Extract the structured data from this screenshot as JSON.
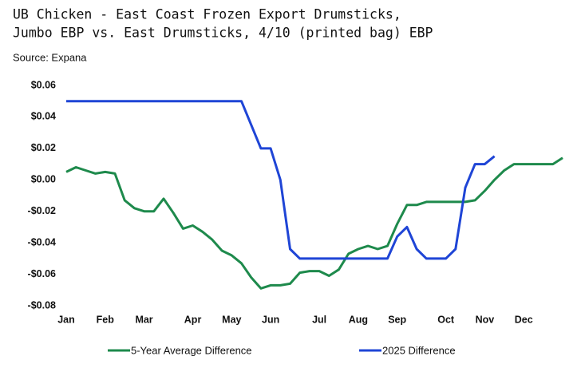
{
  "chart_data": {
    "type": "line",
    "title": [
      "UB Chicken - East Coast Frozen Export Drumsticks,",
      "Jumbo EBP vs. East Drumsticks, 4/10 (printed bag) EBP"
    ],
    "subtitle": "Source: Expana",
    "categories": [
      "Jan",
      null,
      null,
      null,
      "Feb",
      null,
      null,
      null,
      "Mar",
      null,
      null,
      null,
      null,
      "Apr",
      null,
      null,
      null,
      "May",
      null,
      null,
      null,
      "Jun",
      null,
      null,
      null,
      null,
      "Jul",
      null,
      null,
      null,
      "Aug",
      null,
      null,
      null,
      "Sep",
      null,
      null,
      null,
      null,
      "Oct",
      null,
      null,
      null,
      "Nov",
      null,
      null,
      null,
      "Dec",
      null,
      null,
      null,
      null
    ],
    "series": [
      {
        "name": "5-Year Average Difference",
        "color": "#1e8a4c",
        "values": [
          0.005,
          0.008,
          0.006,
          0.004,
          0.005,
          0.004,
          -0.013,
          -0.018,
          -0.02,
          -0.02,
          -0.012,
          -0.021,
          -0.031,
          -0.029,
          -0.033,
          -0.038,
          -0.045,
          -0.048,
          -0.053,
          -0.062,
          -0.069,
          -0.067,
          -0.067,
          -0.066,
          -0.059,
          -0.058,
          -0.058,
          -0.061,
          -0.057,
          -0.047,
          -0.044,
          -0.042,
          -0.044,
          -0.042,
          -0.028,
          -0.016,
          -0.016,
          -0.014,
          -0.014,
          -0.014,
          -0.014,
          -0.014,
          -0.013,
          -0.007,
          0.0,
          0.006,
          0.01,
          0.01,
          0.01,
          0.01,
          0.01,
          0.014
        ]
      },
      {
        "name": "2025 Difference",
        "color": "#1f45d6",
        "values": [
          0.05,
          0.05,
          0.05,
          0.05,
          0.05,
          0.05,
          0.05,
          0.05,
          0.05,
          0.05,
          0.05,
          0.05,
          0.05,
          0.05,
          0.05,
          0.05,
          0.05,
          0.05,
          0.05,
          0.035,
          0.02,
          0.02,
          0.0,
          -0.044,
          -0.05,
          -0.05,
          -0.05,
          -0.05,
          -0.05,
          -0.05,
          -0.05,
          -0.05,
          -0.05,
          -0.05,
          -0.036,
          -0.03,
          -0.044,
          -0.05,
          -0.05,
          -0.05,
          -0.044,
          -0.005,
          0.01,
          0.01,
          0.015,
          null,
          null,
          null,
          null,
          null,
          null,
          null
        ]
      }
    ],
    "ylim": [
      -0.08,
      0.06
    ],
    "yticks": [
      {
        "value": -0.08,
        "label": "-$0.08"
      },
      {
        "value": -0.06,
        "label": "-$0.06"
      },
      {
        "value": -0.04,
        "label": "-$0.04"
      },
      {
        "value": -0.02,
        "label": "-$0.02"
      },
      {
        "value": 0,
        "label": "$0.00"
      },
      {
        "value": 0.02,
        "label": "$0.02"
      },
      {
        "value": 0.04,
        "label": "$0.04"
      },
      {
        "value": 0.06,
        "label": "$0.06"
      }
    ],
    "grid": false,
    "legend": "bottom"
  }
}
